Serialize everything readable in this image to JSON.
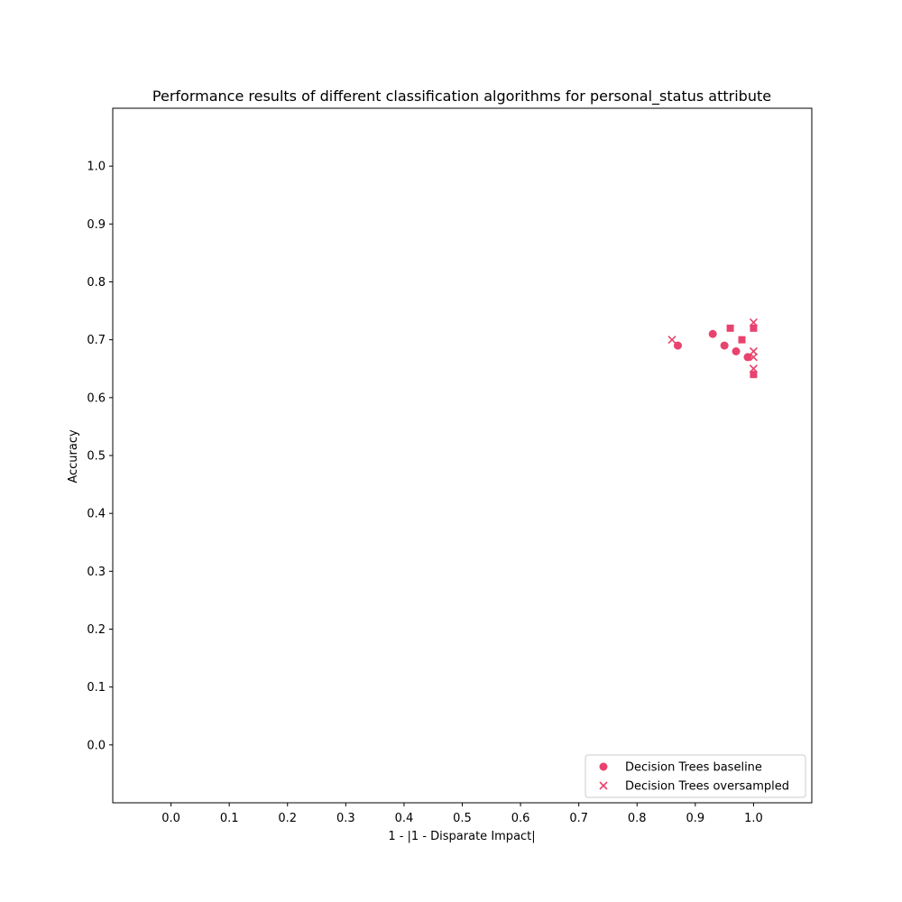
{
  "chart_data": {
    "type": "scatter",
    "title": "Performance results of different classification algorithms for personal_status attribute",
    "xlabel": "1 - |1 - Disparate Impact|",
    "ylabel": "Accuracy",
    "xlim": [
      -0.1,
      1.1
    ],
    "ylim": [
      -0.1,
      1.1
    ],
    "xticks": [
      0.0,
      0.1,
      0.2,
      0.3,
      0.4,
      0.5,
      0.6,
      0.7,
      0.8,
      0.9,
      1.0
    ],
    "yticks": [
      0.0,
      0.1,
      0.2,
      0.3,
      0.4,
      0.5,
      0.6,
      0.7,
      0.8,
      0.9,
      1.0
    ],
    "xtick_labels": [
      "0.0",
      "0.1",
      "0.2",
      "0.3",
      "0.4",
      "0.5",
      "0.6",
      "0.7",
      "0.8",
      "0.9",
      "1.0"
    ],
    "ytick_labels": [
      "0.0",
      "0.1",
      "0.2",
      "0.3",
      "0.4",
      "0.5",
      "0.6",
      "0.7",
      "0.8",
      "0.9",
      "1.0"
    ],
    "grid": false,
    "legend_position": "bottom-right",
    "color": "#e8436e",
    "series": [
      {
        "name": "Decision Trees baseline",
        "marker": "circle",
        "points": [
          {
            "x": 0.87,
            "y": 0.69
          },
          {
            "x": 0.93,
            "y": 0.71
          },
          {
            "x": 0.95,
            "y": 0.69
          },
          {
            "x": 0.97,
            "y": 0.68
          },
          {
            "x": 0.99,
            "y": 0.67
          }
        ]
      },
      {
        "name": "Decision Trees oversampled",
        "marker": "x",
        "points": [
          {
            "x": 0.86,
            "y": 0.7
          },
          {
            "x": 1.0,
            "y": 0.73
          },
          {
            "x": 1.0,
            "y": 0.68
          },
          {
            "x": 1.0,
            "y": 0.67
          },
          {
            "x": 1.0,
            "y": 0.65
          }
        ]
      },
      {
        "marker": "square",
        "points": [
          {
            "x": 0.96,
            "y": 0.72
          },
          {
            "x": 0.98,
            "y": 0.7
          },
          {
            "x": 1.0,
            "y": 0.72
          },
          {
            "x": 1.0,
            "y": 0.64
          }
        ]
      }
    ]
  }
}
